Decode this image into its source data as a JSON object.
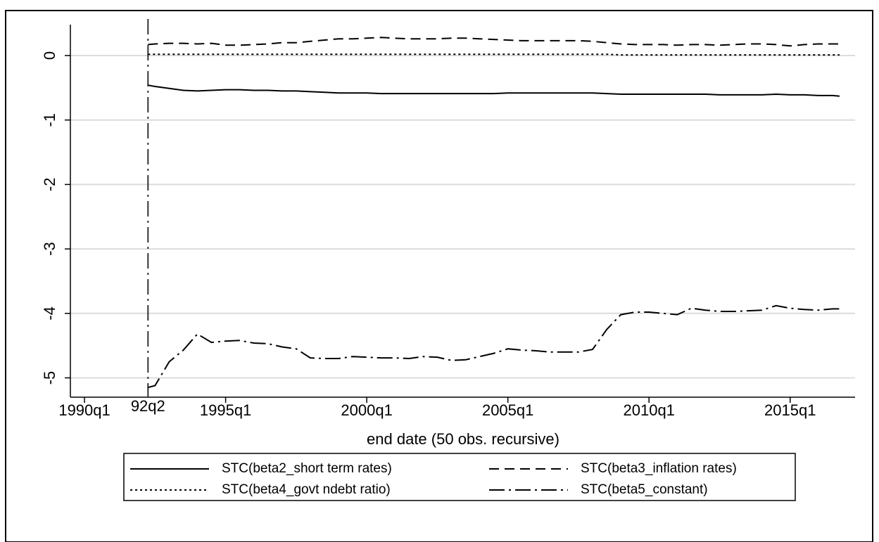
{
  "chart_data": {
    "type": "line",
    "xlabel": "end date (50 obs. recursive)",
    "x": [
      1992.25,
      1992.5,
      1993,
      1993.5,
      1994,
      1994.5,
      1995,
      1995.5,
      1996,
      1996.5,
      1997,
      1997.5,
      1998,
      1998.5,
      1999,
      1999.5,
      2000,
      2000.5,
      2001,
      2001.5,
      2002,
      2002.5,
      2003,
      2003.5,
      2004,
      2004.5,
      2005,
      2005.5,
      2006,
      2006.5,
      2007,
      2007.5,
      2008,
      2008.5,
      2009,
      2009.5,
      2010,
      2010.5,
      2011,
      2011.5,
      2012,
      2012.5,
      2013,
      2013.5,
      2014,
      2014.5,
      2015,
      2015.5,
      2016,
      2016.5,
      2016.75
    ],
    "series": [
      {
        "name": "STC(beta2_short term rates)",
        "color": "#000000",
        "dash": "solid",
        "values": [
          -0.46,
          -0.48,
          -0.51,
          -0.54,
          -0.55,
          -0.54,
          -0.53,
          -0.53,
          -0.54,
          -0.54,
          -0.55,
          -0.55,
          -0.56,
          -0.57,
          -0.58,
          -0.58,
          -0.58,
          -0.59,
          -0.59,
          -0.59,
          -0.59,
          -0.59,
          -0.59,
          -0.59,
          -0.59,
          -0.59,
          -0.58,
          -0.58,
          -0.58,
          -0.58,
          -0.58,
          -0.58,
          -0.58,
          -0.59,
          -0.6,
          -0.6,
          -0.6,
          -0.6,
          -0.6,
          -0.6,
          -0.6,
          -0.61,
          -0.61,
          -0.61,
          -0.61,
          -0.6,
          -0.61,
          -0.61,
          -0.62,
          -0.62,
          -0.63
        ]
      },
      {
        "name": "STC(beta3_inflation rates)",
        "color": "#000000",
        "dash": "dash",
        "values": [
          0.17,
          0.18,
          0.19,
          0.19,
          0.18,
          0.19,
          0.16,
          0.16,
          0.17,
          0.18,
          0.2,
          0.2,
          0.22,
          0.24,
          0.26,
          0.26,
          0.27,
          0.28,
          0.27,
          0.26,
          0.26,
          0.26,
          0.27,
          0.27,
          0.26,
          0.25,
          0.24,
          0.23,
          0.23,
          0.23,
          0.23,
          0.23,
          0.22,
          0.2,
          0.18,
          0.17,
          0.17,
          0.17,
          0.16,
          0.17,
          0.17,
          0.16,
          0.17,
          0.18,
          0.18,
          0.17,
          0.15,
          0.17,
          0.18,
          0.18,
          0.18
        ]
      },
      {
        "name": "STC(beta4_govt ndebt ratio)",
        "color": "#000000",
        "dash": "dot",
        "values": [
          0.02,
          0.02,
          0.02,
          0.02,
          0.02,
          0.02,
          0.02,
          0.02,
          0.02,
          0.02,
          0.02,
          0.02,
          0.02,
          0.02,
          0.02,
          0.02,
          0.02,
          0.02,
          0.02,
          0.02,
          0.02,
          0.02,
          0.02,
          0.02,
          0.02,
          0.02,
          0.02,
          0.02,
          0.02,
          0.02,
          0.02,
          0.02,
          0.02,
          0.02,
          0.01,
          0.01,
          0.01,
          0.01,
          0.01,
          0.01,
          0.01,
          0.01,
          0.01,
          0.01,
          0.01,
          0.01,
          0.01,
          0.01,
          0.01,
          0.01,
          0.01
        ]
      },
      {
        "name": "STC(beta5_constant)",
        "color": "#000000",
        "dash": "dashdot",
        "values": [
          -5.15,
          -5.12,
          -4.75,
          -4.57,
          -4.32,
          -4.45,
          -4.43,
          -4.42,
          -4.46,
          -4.47,
          -4.52,
          -4.55,
          -4.69,
          -4.7,
          -4.7,
          -4.67,
          -4.68,
          -4.69,
          -4.69,
          -4.7,
          -4.67,
          -4.68,
          -4.73,
          -4.72,
          -4.67,
          -4.62,
          -4.55,
          -4.57,
          -4.58,
          -4.6,
          -4.6,
          -4.6,
          -4.56,
          -4.25,
          -4.02,
          -3.98,
          -3.98,
          -4.0,
          -4.02,
          -3.92,
          -3.95,
          -3.97,
          -3.97,
          -3.96,
          -3.95,
          -3.88,
          -3.92,
          -3.94,
          -3.95,
          -3.93,
          -3.93
        ]
      }
    ],
    "xlim": [
      1989.5,
      2017.3
    ],
    "xticks": [
      {
        "value": 1990,
        "label": "1990q1"
      },
      {
        "value": 1995,
        "label": "1995q1"
      },
      {
        "value": 2000,
        "label": "2000q1"
      },
      {
        "value": 2005,
        "label": "2005q1"
      },
      {
        "value": 2010,
        "label": "2010q1"
      },
      {
        "value": 2015,
        "label": "2015q1"
      }
    ],
    "ylim": [
      -5.3,
      0.48
    ],
    "yticks": [
      0,
      -1,
      -2,
      -3,
      -4,
      -5
    ],
    "vline": {
      "x": 1992.25,
      "label": "92q2"
    },
    "grid": true
  }
}
